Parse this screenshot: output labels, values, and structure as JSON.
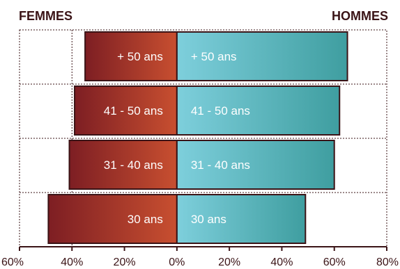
{
  "chart_data": {
    "type": "bar",
    "orientation": "horizontal",
    "layout": "population-pyramid",
    "left_title": "FEMMES",
    "right_title": "HOMMES",
    "categories": [
      "+ 50 ans",
      "41 - 50 ans",
      "31 - 40 ans",
      "30 ans"
    ],
    "series": [
      {
        "name": "FEMMES",
        "values": [
          35,
          39,
          41,
          49
        ],
        "color_dark": "#7d1e23",
        "color_light": "#c84f30"
      },
      {
        "name": "HOMMES",
        "values": [
          65,
          62,
          60,
          49
        ],
        "color_dark": "#3f9ea0",
        "color_light": "#7ecfdc"
      }
    ],
    "xlim": [
      -60,
      80
    ],
    "xticks": [
      -60,
      -40,
      -20,
      0,
      20,
      40,
      60,
      80
    ],
    "xtick_labels": [
      "60%",
      "40%",
      "20%",
      "0%",
      "20%",
      "40%",
      "60%",
      "80%"
    ],
    "grid": "dotted"
  }
}
